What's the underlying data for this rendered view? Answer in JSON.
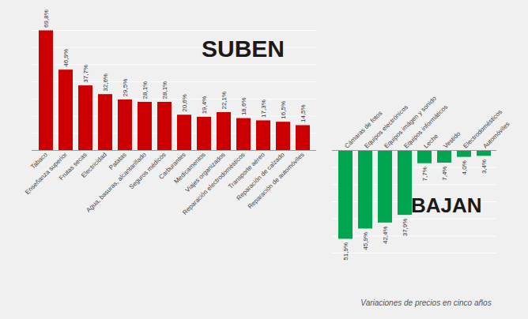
{
  "chart_data": [
    {
      "type": "bar",
      "title": "SUBEN",
      "categories": [
        "Tabaco",
        "Enseñanza superior",
        "Frutas secas",
        "Electricidad",
        "Patatas",
        "Agua, basuras, alcantarillado",
        "Seguros médicos",
        "Carburantes",
        "Medicamentos",
        "Viajes organizados",
        "Reparación electrodomésticos",
        "Transporte aéreo",
        "Reparación de calzado",
        "Reparación de automóviles"
      ],
      "values": [
        69.8,
        46.9,
        37.7,
        32.6,
        29.5,
        28.1,
        28.1,
        20.6,
        19.4,
        22.1,
        18.6,
        17.3,
        16.5,
        14.5
      ],
      "value_labels": [
        "69,8%",
        "46,9%",
        "37,7%",
        "32,6%",
        "29,5%",
        "28,1%",
        "28,1%",
        "20,6%",
        "19,4%",
        "22,1%",
        "18,6%",
        "17,3%",
        "16,5%",
        "14,5%"
      ],
      "color": "#cc0000",
      "ylim": [
        0,
        70
      ],
      "yticks": [
        0,
        10,
        20,
        30,
        40,
        50,
        60,
        70
      ],
      "grid": true,
      "data_labels": true,
      "tick_labels": "x"
    },
    {
      "type": "bar",
      "title": "BAJAN",
      "subtitle": "Variaciones de precios en cinco años",
      "categories": [
        "Cámaras de fotos",
        "Equipos electrónicos",
        "Equipos imágen y sonido",
        "Equipos informáticos",
        "Leche",
        "Vestido",
        "Electrodomésticos",
        "Automóviles"
      ],
      "values": [
        51.9,
        45.9,
        42.4,
        37.9,
        7.7,
        7.4,
        4.0,
        3.4
      ],
      "value_labels": [
        "51,9%",
        "45,9%",
        "42,4%",
        "37,9%",
        "7,7%",
        "7,4%",
        "4,0%",
        "3,4%"
      ],
      "color": "#00a550",
      "ylim": [
        0,
        60
      ],
      "yticks": [
        0,
        10,
        20,
        30,
        40,
        50,
        60
      ],
      "grid": true,
      "data_labels": true,
      "tick_labels": "x"
    }
  ]
}
